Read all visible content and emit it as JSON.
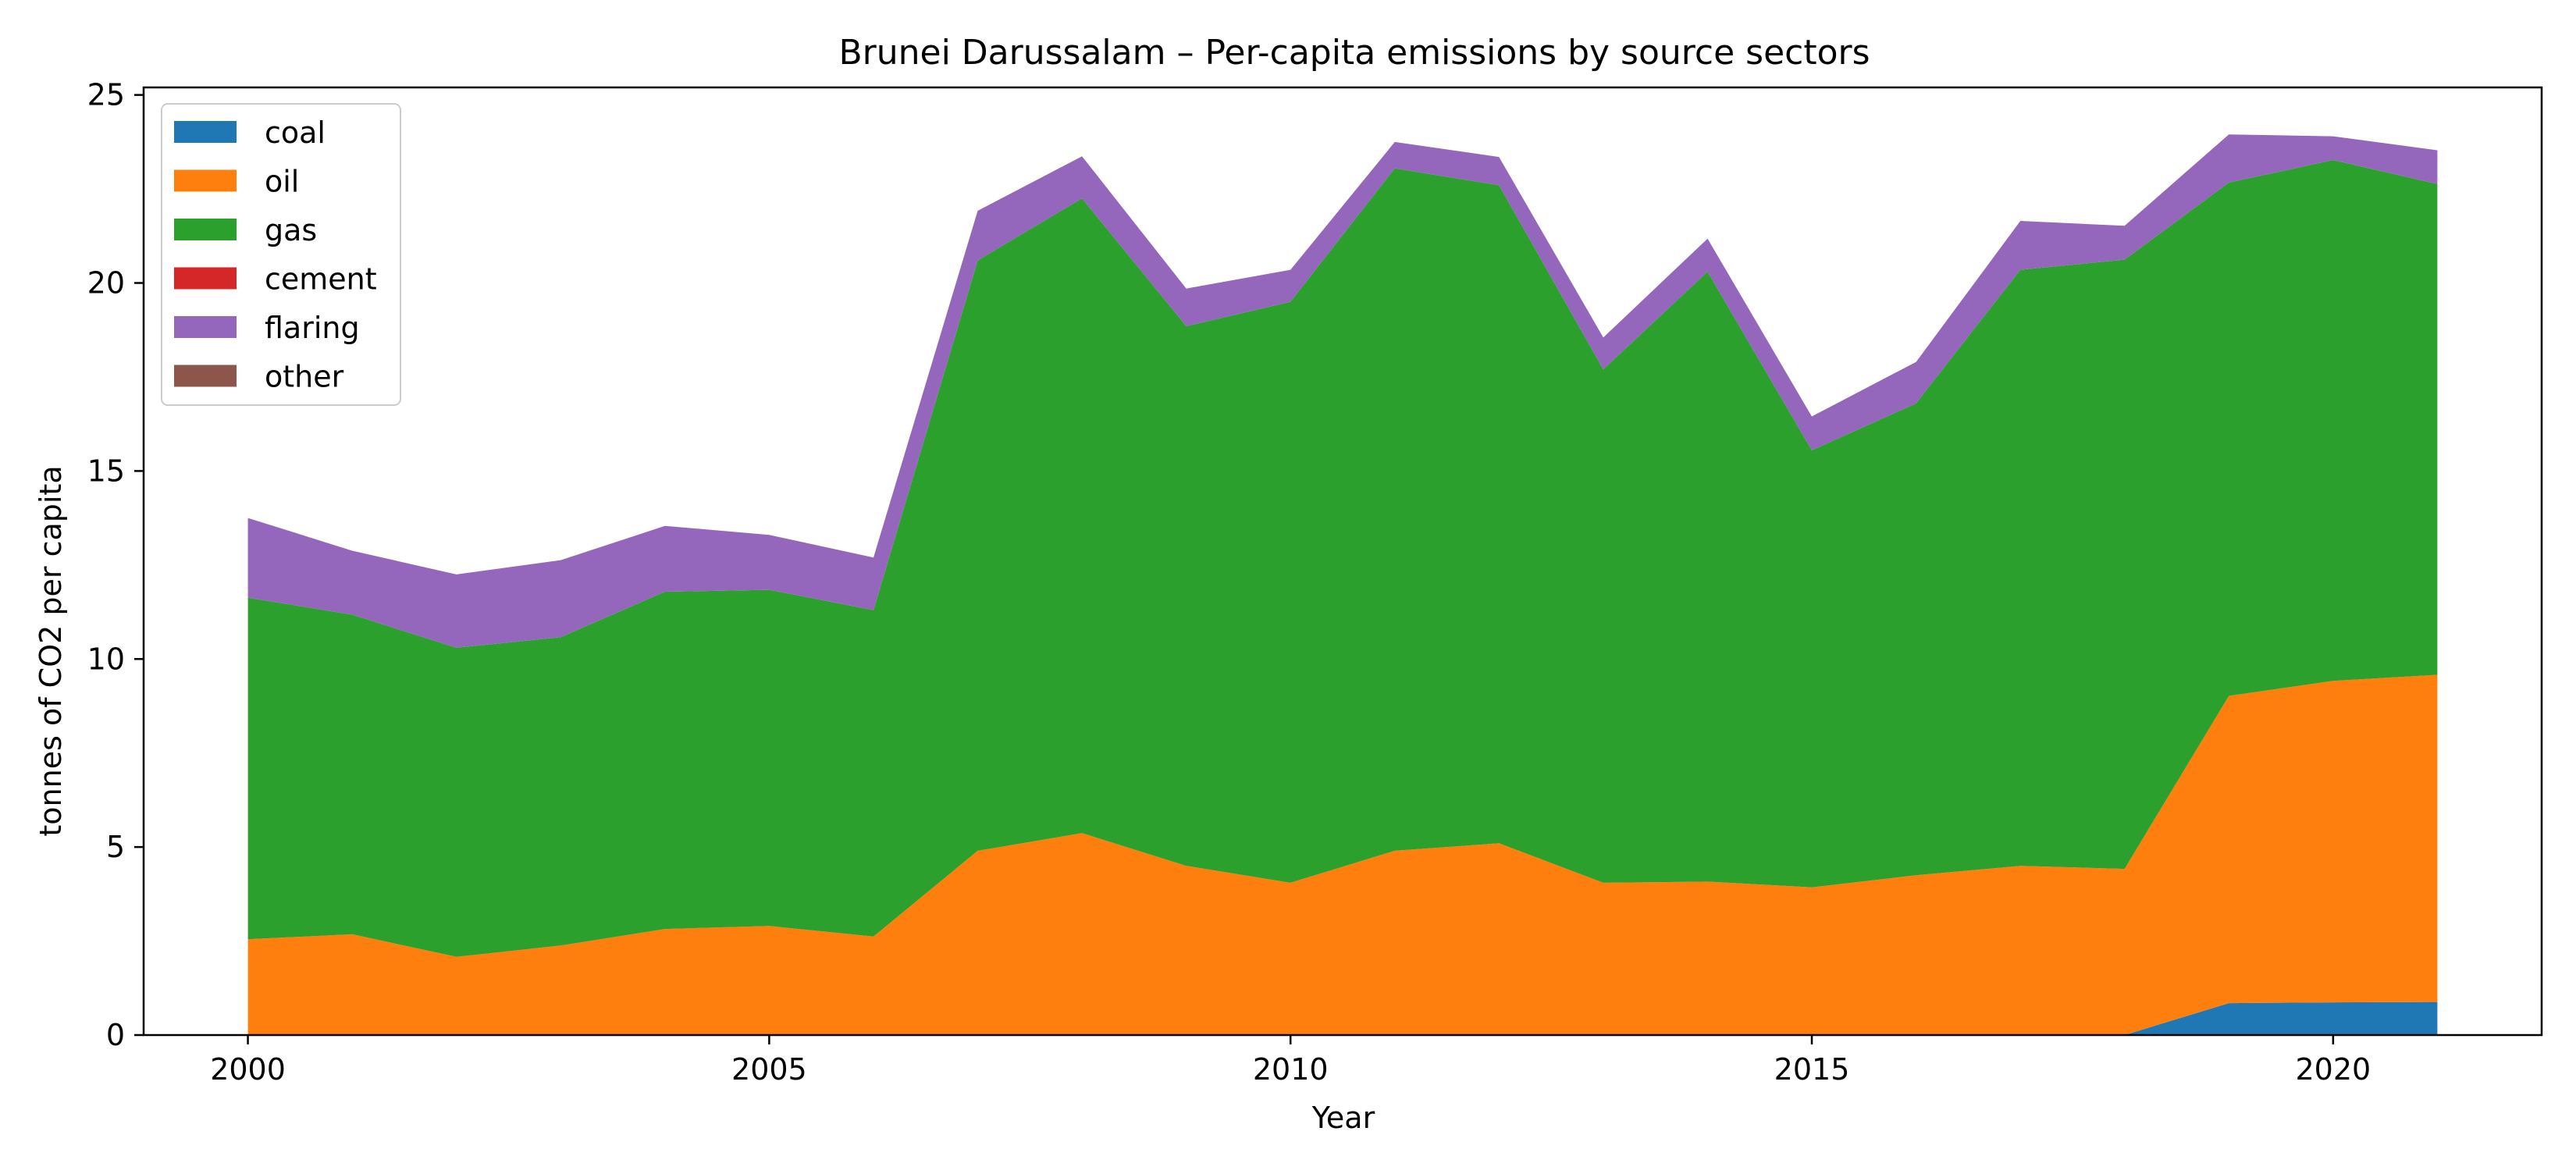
{
  "chart_data": {
    "type": "area",
    "stacked": true,
    "title": "Brunei Darussalam – Per-capita emissions by source sectors",
    "xlabel": "Year",
    "ylabel": "tonnes of CO2 per capita",
    "xlim": [
      1999,
      2022
    ],
    "ylim": [
      0,
      25.2
    ],
    "x_ticks": [
      2000,
      2005,
      2010,
      2015,
      2020
    ],
    "y_ticks": [
      0,
      5,
      10,
      15,
      20,
      25
    ],
    "grid": false,
    "legend_position": "top-left",
    "x": [
      2000,
      2001,
      2002,
      2003,
      2004,
      2005,
      2006,
      2007,
      2008,
      2009,
      2010,
      2011,
      2012,
      2013,
      2014,
      2015,
      2016,
      2017,
      2018,
      2019,
      2020,
      2021
    ],
    "series": [
      {
        "name": "coal",
        "color": "#1f77b4",
        "values": [
          0,
          0,
          0,
          0,
          0,
          0,
          0,
          0,
          0,
          0,
          0,
          0,
          0,
          0,
          0,
          0,
          0,
          0,
          0,
          0.85,
          0.87,
          0.88
        ]
      },
      {
        "name": "oil",
        "color": "#ff7f0e",
        "values": [
          2.55,
          2.68,
          2.08,
          2.38,
          2.82,
          2.9,
          2.62,
          4.9,
          5.37,
          4.5,
          4.05,
          4.9,
          5.1,
          4.05,
          4.08,
          3.93,
          4.25,
          4.5,
          4.42,
          8.17,
          8.55,
          8.7
        ]
      },
      {
        "name": "gas",
        "color": "#2ca02c",
        "values": [
          9.08,
          8.5,
          8.22,
          8.2,
          8.97,
          8.94,
          8.68,
          15.7,
          16.88,
          14.35,
          15.45,
          18.15,
          17.5,
          13.65,
          16.22,
          11.62,
          12.55,
          15.85,
          16.2,
          13.65,
          13.85,
          13.05
        ]
      },
      {
        "name": "cement",
        "color": "#d62728",
        "values": [
          0,
          0,
          0,
          0,
          0,
          0,
          0,
          0,
          0,
          0,
          0,
          0,
          0,
          0,
          0,
          0,
          0,
          0,
          0,
          0,
          0,
          0
        ]
      },
      {
        "name": "flaring",
        "color": "#9467bd",
        "values": [
          2.12,
          1.7,
          1.95,
          2.05,
          1.75,
          1.46,
          1.4,
          1.32,
          1.12,
          1.0,
          0.85,
          0.7,
          0.75,
          0.85,
          0.88,
          0.9,
          1.1,
          1.3,
          0.9,
          1.28,
          0.63,
          0.9
        ]
      },
      {
        "name": "other",
        "color": "#8c564b",
        "values": [
          0,
          0,
          0,
          0,
          0,
          0,
          0,
          0,
          0,
          0,
          0,
          0,
          0,
          0,
          0,
          0,
          0,
          0,
          0,
          0,
          0,
          0
        ]
      }
    ]
  }
}
